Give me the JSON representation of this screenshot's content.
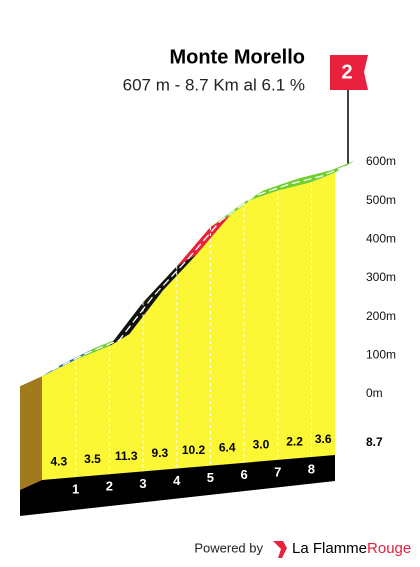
{
  "title": "Monte Morello",
  "subtitle": "607 m - 8.7 Km al 6.1 %",
  "category": "2",
  "chart_data": {
    "type": "profile",
    "x": [
      0,
      1,
      2,
      3,
      4,
      5,
      6,
      7,
      8,
      8.7
    ],
    "elevation": [
      77,
      120,
      155,
      268,
      361,
      463,
      527,
      557,
      579,
      604
    ],
    "xticks": [
      1,
      2,
      3,
      4,
      5,
      6,
      7,
      8,
      8.7
    ],
    "ylim": [
      0,
      620
    ],
    "yticks": [
      {
        "value": 0,
        "label": "0m"
      },
      {
        "value": 100,
        "label": "100m"
      },
      {
        "value": 200,
        "label": "200m"
      },
      {
        "value": 300,
        "label": "300m"
      },
      {
        "value": 400,
        "label": "400m"
      },
      {
        "value": 500,
        "label": "500m"
      },
      {
        "value": 600,
        "label": "600m"
      }
    ],
    "gradients": {
      "values": [
        4.3,
        3.5,
        11.3,
        9.3,
        10.2,
        6.4,
        3.0,
        2.2,
        3.6
      ],
      "value_labels": [
        "4.3",
        "3.5",
        "11.3",
        "9.3",
        "10.2",
        "6.4",
        "3.0",
        "2.2",
        "3.6"
      ],
      "colors": [
        "#1f6aa5",
        "#6fcf2f",
        "#111111",
        "#111111",
        "#e8213f",
        "#6fcf2f",
        "#6fcf2f",
        "#6fcf2f",
        "#6fcf2f"
      ]
    },
    "fill_color": "#fbf735"
  },
  "footer": {
    "prefix": "Powered by",
    "brand": "La Flamme",
    "brand_accent": "Rouge"
  }
}
